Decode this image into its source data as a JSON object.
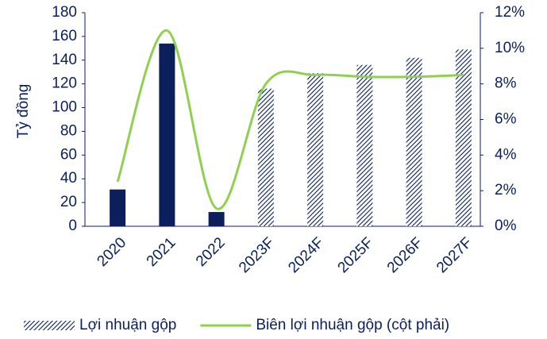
{
  "chart_data": {
    "type": "bar_line",
    "y_label": "Tỷ đồng",
    "categories": [
      "2020",
      "2021",
      "2022",
      "2023F",
      "2024F",
      "2025F",
      "2026F",
      "2027F"
    ],
    "series": [
      {
        "name": "Lợi nhuận gộp",
        "color": "#0a1f5c",
        "type": "bar",
        "values": [
          31,
          154,
          12,
          116,
          129,
          136,
          142,
          149
        ],
        "hatched": [
          false,
          false,
          false,
          true,
          true,
          true,
          true,
          true
        ]
      },
      {
        "name": "Biên lợi nhuận gộp (cột phải)",
        "color": "#8fd14f",
        "type": "line",
        "axis": "y2",
        "smooth": true,
        "values": [
          2.5,
          11.0,
          1.0,
          8.0,
          8.5,
          8.4,
          8.4,
          8.5
        ]
      }
    ],
    "ylim": [
      0,
      180
    ],
    "yticks": [
      0,
      20,
      40,
      60,
      80,
      100,
      120,
      140,
      160,
      180
    ],
    "y2lim": [
      0,
      12
    ],
    "y2ticks": [
      {
        "value": 0,
        "label": "0%"
      },
      {
        "value": 2,
        "label": "2%"
      },
      {
        "value": 4,
        "label": "4%"
      },
      {
        "value": 6,
        "label": "6%"
      },
      {
        "value": 8,
        "label": "8%"
      },
      {
        "value": 10,
        "label": "10%"
      },
      {
        "value": 12,
        "label": "12%"
      }
    ],
    "legend": "bottom"
  }
}
